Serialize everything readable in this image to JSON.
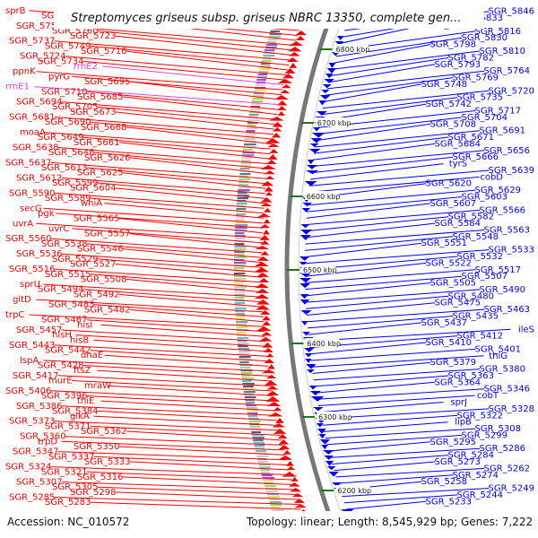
{
  "title": "Streptomyces griseus subsp. griseus NBRC 13350, complete gen...",
  "accession": "Accession: NC_010572",
  "summary": "Topology: linear; Length: 8,545,929 bp; Genes: 7,222",
  "colors": {
    "forward": "#ff0000",
    "reverse": "#0000ff",
    "rna": "#dd44dd",
    "backbone": "#777777"
  },
  "ticks": [
    "6800 kbp",
    "6700 kbp",
    "6600 kbp",
    "6500 kbp",
    "6400 kbp",
    "6300 kbp",
    "6200 kbp"
  ],
  "left_labels": [
    "sprB",
    "SGR_5752",
    "SGR_5738",
    "SGR_5750",
    "SGR_5760",
    "SGR_5723",
    "SGR_5737",
    "SGR_5749",
    "SGR_5716",
    "SGR_5724",
    "SGR_5734",
    "rrnE2",
    "ppnK",
    "pyrG",
    "SGR_5695",
    "rrnE1",
    "SGR_5710",
    "SGR_5685",
    "SGR_5694",
    "SGR_5705",
    "SGR_5673",
    "SGR_5681",
    "SGR_5690",
    "SGR_5668",
    "moaA",
    "SGR_5649",
    "SGR_5661",
    "SGR_5638",
    "SGR_5648",
    "SGR_5626",
    "SGR_5637",
    "SGR_5613",
    "SGR_5625",
    "SGR_5612",
    "SGR_5599",
    "SGR_5604",
    "SGR_5590",
    "SGR_5589",
    "whiA",
    "secG",
    "pgk",
    "SGR_5565",
    "uvrA",
    "uvrC",
    "SGR_5557",
    "SGR_5560",
    "SGR_5538",
    "SGR_5546",
    "SGR_5536",
    "SGR_5529",
    "SGR_5527",
    "SGR_5516",
    "SGR_5515",
    "SGR_5508",
    "sprU",
    "SGR_5494",
    "SGR_5492",
    "gltD",
    "SGR_5483",
    "SGR_5482",
    "trpC",
    "SGR_5467",
    "hisI",
    "SGR_5457",
    "hisH",
    "hisB",
    "SGR_5443",
    "SGR_5442",
    "dnaE",
    "lspA",
    "SGR_5428",
    "ftsZ",
    "SGR_5417",
    "murE",
    "mraW",
    "SGR_5406",
    "SGR_5396",
    "thiE",
    "SGR_5386",
    "SGR_5384",
    "glkA",
    "SGR_5373",
    "SGR_5371",
    "SGR_5362",
    "SGR_5360",
    "trpD",
    "SGR_5350",
    "SGR_5347",
    "SGR_5337",
    "SGR_5333",
    "SGR_5324",
    "SGR_5321",
    "SGR_5316",
    "SGR_5307",
    "SGR_5305",
    "SGR_5298",
    "SGR_5285",
    "SGR_5283"
  ],
  "right_labels": [
    "SGR_5846",
    "SGR_5833",
    "SGR_5845",
    "SGR_5816",
    "SGR_5830",
    "SGR_5798",
    "SGR_5810",
    "SGR_5782",
    "SGR_5793",
    "SGR_5764",
    "SGR_5769",
    "SGR_5748",
    "SGR_5720",
    "SGR_5735",
    "SGR_5742",
    "SGR_5717",
    "SGR_5704",
    "SGR_5708",
    "SGR_5691",
    "SGR_5671",
    "SGR_5684",
    "SGR_5656",
    "SGR_5666",
    "tyrS",
    "SGR_5639",
    "cobD",
    "SGR_5620",
    "SGR_5629",
    "SGR_5603",
    "SGR_5607",
    "SGR_5566",
    "SGR_5582",
    "SGR_5584",
    "SGR_5563",
    "SGR_5548",
    "SGR_5551",
    "SGR_5533",
    "SGR_5532",
    "SGR_5522",
    "SGR_5517",
    "SGR_5507",
    "SGR_5505",
    "SGR_5490",
    "SGR_5480",
    "SGR_5475",
    "SGR_5463",
    "SGR_5435",
    "SGR_5437",
    "ileS",
    "SGR_5412",
    "SGR_5410",
    "SGR_5401",
    "thiG",
    "SGR_5379",
    "SGR_5380",
    "SGR_5363",
    "SGR_5364",
    "SGR_5346",
    "cobT",
    "sprJ",
    "SGR_5328",
    "SGR_5322",
    "lipB",
    "SGR_5308",
    "SGR_5299",
    "SGR_5295",
    "SGR_5286",
    "SGR_5284",
    "SGR_5273",
    "SGR_5262",
    "SGR_5274",
    "SGR_5258",
    "SGR_5249",
    "SGR_5244",
    "SGR_5233"
  ]
}
